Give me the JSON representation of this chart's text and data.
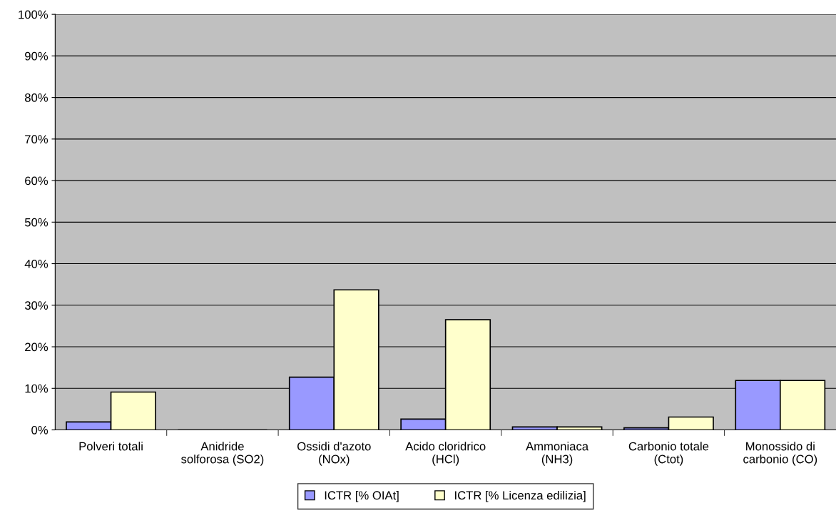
{
  "chart_data": {
    "type": "bar",
    "categories": [
      "Polveri totali",
      "Anidride\nsolforosa (SO2)",
      "Ossidi d'azoto\n(NOx)",
      "Acido cloridrico\n(HCl)",
      "Ammoniaca\n(NH3)",
      "Carbonio totale\n(Ctot)",
      "Monossido di\ncarbonio (CO)"
    ],
    "series": [
      {
        "name": "ICTR [% OIAt]",
        "color": "#9999ff",
        "values": [
          1.9,
          null,
          12.7,
          2.6,
          0.7,
          0.5,
          11.9
        ]
      },
      {
        "name": "ICTR [% Licenza edilizia]",
        "color": "#ffffcc",
        "values": [
          9.1,
          null,
          33.7,
          26.5,
          0.7,
          3.1,
          11.9
        ]
      }
    ],
    "ylim": [
      0,
      100
    ],
    "yticks": [
      {
        "value": 0,
        "label": "0%"
      },
      {
        "value": 10,
        "label": "10%"
      },
      {
        "value": 20,
        "label": "20%"
      },
      {
        "value": 30,
        "label": "30%"
      },
      {
        "value": 40,
        "label": "40%"
      },
      {
        "value": 50,
        "label": "50%"
      },
      {
        "value": 60,
        "label": "60%"
      },
      {
        "value": 70,
        "label": "70%"
      },
      {
        "value": 80,
        "label": "80%"
      },
      {
        "value": 90,
        "label": "90%"
      },
      {
        "value": 100,
        "label": "100%"
      }
    ],
    "grid": "y",
    "legend": "bottom"
  }
}
